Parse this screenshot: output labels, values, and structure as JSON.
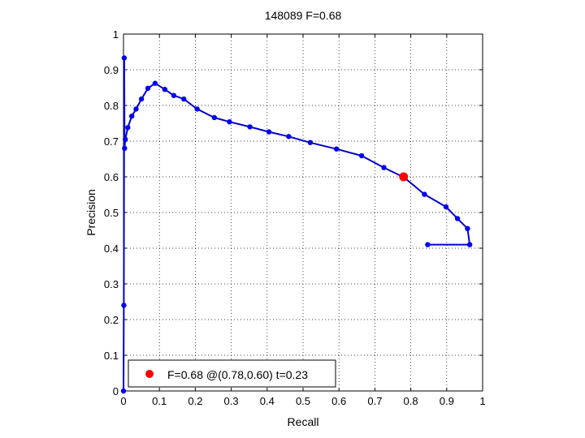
{
  "chart_data": {
    "type": "line",
    "title": "148089 F=0.68",
    "xlabel": "Recall",
    "ylabel": "Precision",
    "xlim": [
      0,
      1
    ],
    "ylim": [
      0,
      1
    ],
    "xticks": [
      "0",
      "0.1",
      "0.2",
      "0.3",
      "0.4",
      "0.5",
      "0.6",
      "0.7",
      "0.8",
      "0.9",
      "1"
    ],
    "yticks": [
      "0",
      "0.1",
      "0.2",
      "0.3",
      "0.4",
      "0.5",
      "0.6",
      "0.7",
      "0.8",
      "0.9",
      "1"
    ],
    "grid": true,
    "legend": {
      "placement": "bottom-left",
      "label": "F=0.68 @(0.78,0.60) t=0.23"
    },
    "colors": {
      "line": "#0000cc",
      "marker": "#0000ee",
      "best": "#ff0000"
    },
    "series": [
      {
        "points": [
          [
            0.847,
            0.41
          ],
          [
            0.964,
            0.41
          ],
          [
            0.964,
            0.41
          ],
          [
            0.958,
            0.455
          ],
          [
            0.93,
            0.483
          ],
          [
            0.898,
            0.516
          ],
          [
            0.838,
            0.551
          ],
          [
            0.782,
            0.598
          ],
          [
            0.725,
            0.626
          ],
          [
            0.663,
            0.659
          ],
          [
            0.593,
            0.678
          ],
          [
            0.52,
            0.696
          ],
          [
            0.46,
            0.713
          ],
          [
            0.405,
            0.726
          ],
          [
            0.352,
            0.74
          ],
          [
            0.295,
            0.754
          ],
          [
            0.253,
            0.766
          ],
          [
            0.205,
            0.79
          ],
          [
            0.168,
            0.818
          ],
          [
            0.14,
            0.828
          ],
          [
            0.115,
            0.845
          ],
          [
            0.088,
            0.862
          ],
          [
            0.068,
            0.848
          ],
          [
            0.05,
            0.818
          ],
          [
            0.035,
            0.79
          ],
          [
            0.023,
            0.77
          ],
          [
            0.012,
            0.738
          ],
          [
            0.005,
            0.705
          ],
          [
            0.003,
            0.68
          ],
          [
            0.002,
            0.933
          ],
          [
            0.001,
            0.24
          ],
          [
            0.0,
            0.0
          ]
        ]
      }
    ],
    "best_point": [
      0.78,
      0.6
    ]
  }
}
